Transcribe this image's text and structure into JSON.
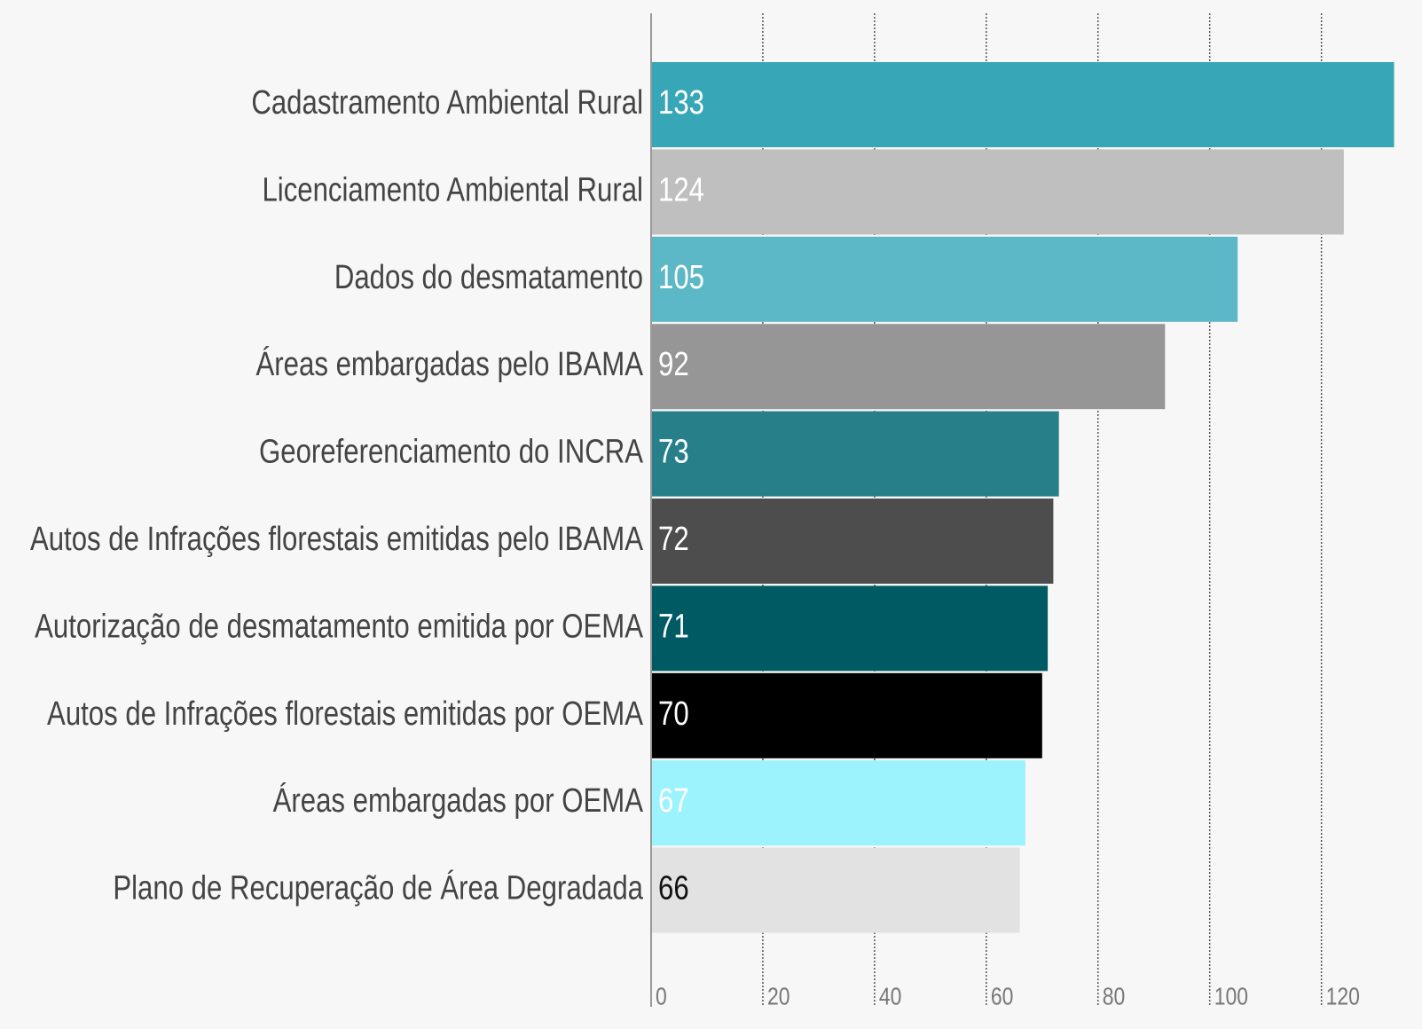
{
  "chart_data": {
    "type": "barh",
    "categories": [
      "Cadastramento Ambiental Rural",
      "Licenciamento Ambiental Rural",
      "Dados do desmatamento",
      "Áreas embargadas pelo IBAMA",
      "Georeferenciamento do INCRA",
      "Autos de Infrações florestais emitidas pelo IBAMA",
      "Autorização de desmatamento emitida por OEMA",
      "Autos de Infrações florestais emitidas por OEMA",
      "Áreas embargadas por OEMA",
      "Plano de Recuperação de Área Degradada"
    ],
    "values": [
      133,
      124,
      105,
      92,
      73,
      72,
      71,
      70,
      67,
      66
    ],
    "colors": [
      "#37a6b7",
      "#bfbfbf",
      "#5cb8c6",
      "#969696",
      "#277f8a",
      "#4d4d4d",
      "#005a63",
      "#000000",
      "#9cf3fe",
      "#e2e2e2"
    ],
    "value_label_colors": [
      "#ffffff",
      "#ffffff",
      "#ffffff",
      "#ffffff",
      "#ffffff",
      "#ffffff",
      "#ffffff",
      "#ffffff",
      "#ffffff",
      "#111111"
    ],
    "xlim": [
      0,
      138
    ],
    "xticks": [
      0,
      20,
      40,
      60,
      80,
      100,
      120
    ],
    "grid": true
  }
}
